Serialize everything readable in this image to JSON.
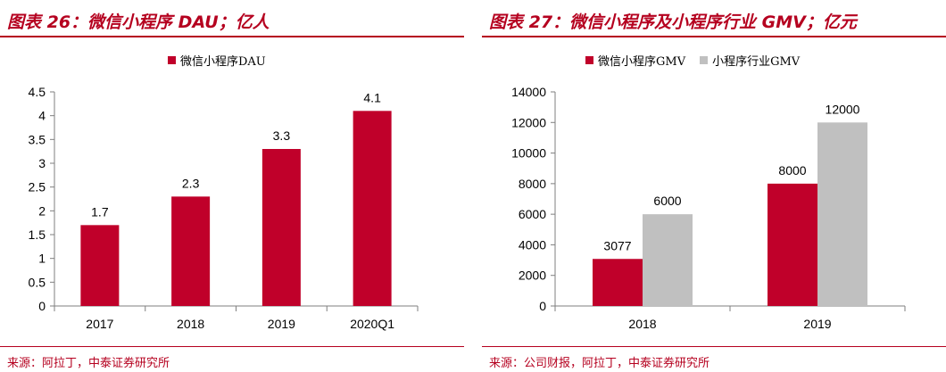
{
  "left": {
    "title": "图表 26：微信小程序 DAU；亿人",
    "source": "来源：阿拉丁，中泰证券研究所",
    "chart_data": {
      "type": "bar",
      "categories": [
        "2017",
        "2018",
        "2019",
        "2020Q1"
      ],
      "series": [
        {
          "name": "微信小程序DAU",
          "values": [
            1.7,
            2.3,
            3.3,
            4.1
          ],
          "color": "#c0002a"
        }
      ],
      "ylim": [
        0,
        4.5
      ],
      "yticks": [
        "0",
        "0.5",
        "1",
        "1.5",
        "2",
        "2.5",
        "3",
        "3.5",
        "4",
        "4.5"
      ],
      "data_labels": [
        "1.7",
        "2.3",
        "3.3",
        "4.1"
      ],
      "legend": "top",
      "grid": false
    }
  },
  "right": {
    "title": "图表 27：微信小程序及小程序行业 GMV；亿元",
    "source": "来源：公司财报，阿拉丁，中泰证券研究所",
    "chart_data": {
      "type": "bar",
      "categories": [
        "2018",
        "2019"
      ],
      "series": [
        {
          "name": "微信小程序GMV",
          "values": [
            3077,
            8000
          ],
          "color": "#c0002a"
        },
        {
          "name": "小程序行业GMV",
          "values": [
            6000,
            12000
          ],
          "color": "#c0c0c0"
        }
      ],
      "ylim": [
        0,
        14000
      ],
      "yticks": [
        "0",
        "2000",
        "4000",
        "6000",
        "8000",
        "10000",
        "12000",
        "14000"
      ],
      "data_labels": [
        [
          "3077",
          "8000"
        ],
        [
          "6000",
          "12000"
        ]
      ],
      "legend": "top",
      "grid": false
    }
  }
}
